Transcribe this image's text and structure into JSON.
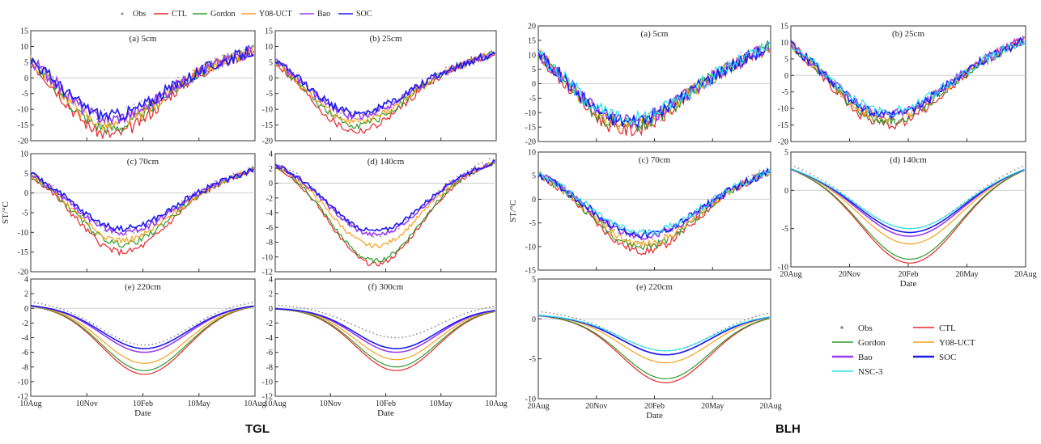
{
  "site_labels": {
    "left": "TGL",
    "right": "BLH"
  },
  "colors": {
    "Obs": "#888888",
    "CTL": "#e8262b",
    "Gordon": "#2e9a2e",
    "Y08-UCT": "#f7a11c",
    "Bao": "#9b3df0",
    "SOC": "#1c1cf0",
    "NSC-3": "#27e0e8"
  },
  "tgl_legend": [
    "Obs",
    "CTL",
    "Gordon",
    "Y08-UCT",
    "Bao",
    "SOC"
  ],
  "blh_legend": [
    "Obs",
    "CTL",
    "Gordon",
    "Y08-UCT",
    "Bao",
    "SOC",
    "NSC-3"
  ],
  "xtick_labels": {
    "TGL": [
      "10Aug",
      "10Nov",
      "10Feb",
      "10May",
      "10Aug"
    ],
    "BLH": [
      "20Aug",
      "20Nov",
      "20Feb",
      "20May",
      "20Aug"
    ]
  },
  "xlabel": "Date",
  "ylabel": "ST/°C",
  "chart_data": [
    {
      "id": "tgl-a",
      "type": "line",
      "title": "(a) 5cm",
      "ylim": [
        -20,
        15
      ],
      "yticks": [
        -20,
        -15,
        -10,
        -5,
        0,
        5,
        10,
        15
      ],
      "min_day": 130,
      "winter": {
        "Obs": -12,
        "CTL": -18,
        "Gordon": -16,
        "Y08-UCT": -15,
        "Bao": -13,
        "SOC": -12
      },
      "summer": 9,
      "noise": 2
    },
    {
      "id": "tgl-b",
      "type": "line",
      "title": "(b) 25cm",
      "ylim": [
        -20,
        15
      ],
      "yticks": [
        -20,
        -15,
        -10,
        -5,
        0,
        5,
        10,
        15
      ],
      "min_day": 135,
      "winter": {
        "Obs": -12,
        "CTL": -17,
        "Gordon": -15,
        "Y08-UCT": -14,
        "Bao": -12,
        "SOC": -11
      },
      "summer": 8,
      "noise": 1.2
    },
    {
      "id": "tgl-c",
      "type": "line",
      "title": "(c) 70cm",
      "ylim": [
        -20,
        10
      ],
      "yticks": [
        -20,
        -15,
        -10,
        -5,
        0,
        5,
        10
      ],
      "min_day": 150,
      "winter": {
        "Obs": -10,
        "CTL": -15,
        "Gordon": -13,
        "Y08-UCT": -12,
        "Bao": -10,
        "SOC": -9
      },
      "summer": 6,
      "noise": 0.8
    },
    {
      "id": "tgl-d",
      "type": "line",
      "title": "(d) 140cm",
      "ylim": [
        -12,
        4
      ],
      "yticks": [
        -12,
        -10,
        -8,
        -6,
        -4,
        -2,
        0,
        2,
        4
      ],
      "min_day": 165,
      "winter": {
        "Obs": -7,
        "CTL": -11,
        "Gordon": -10.5,
        "Y08-UCT": -8.5,
        "Bao": -7,
        "SOC": -6.5
      },
      "summer": 3,
      "noise": 0.3
    },
    {
      "id": "tgl-e",
      "type": "line",
      "title": "(e) 220cm",
      "ylim": [
        -12,
        4
      ],
      "yticks": [
        -12,
        -10,
        -8,
        -6,
        -4,
        -2,
        0,
        2,
        4
      ],
      "min_day": 185,
      "winter": {
        "Obs": -5,
        "CTL": -9,
        "Gordon": -8.5,
        "Y08-UCT": -7.5,
        "Bao": -6,
        "SOC": -5.5
      },
      "summer": 0.5,
      "noise": 0
    },
    {
      "id": "tgl-f",
      "type": "line",
      "title": "(f) 300cm",
      "ylim": [
        -12,
        4
      ],
      "yticks": [
        -12,
        -10,
        -8,
        -6,
        -4,
        -2,
        0,
        2,
        4
      ],
      "min_day": 200,
      "winter": {
        "Obs": -4,
        "CTL": -8.5,
        "Gordon": -8,
        "Y08-UCT": -7,
        "Bao": -6,
        "SOC": -5.5
      },
      "summer": 0,
      "noise": 0
    },
    {
      "id": "blh-a",
      "type": "line",
      "title": "(a) 5cm",
      "ylim": [
        -20,
        20
      ],
      "yticks": [
        -20,
        -15,
        -10,
        -5,
        0,
        5,
        10,
        15,
        20
      ],
      "min_day": 140,
      "winter": {
        "Obs": -14,
        "CTL": -16,
        "Gordon": -15,
        "Y08-UCT": -14,
        "Bao": -13,
        "SOC": -13,
        "NSC-3": -12
      },
      "summer": 13,
      "noise": 2.5
    },
    {
      "id": "blh-b",
      "type": "line",
      "title": "(b) 25cm",
      "ylim": [
        -20,
        15
      ],
      "yticks": [
        -20,
        -15,
        -10,
        -5,
        0,
        5,
        10,
        15
      ],
      "min_day": 150,
      "winter": {
        "Obs": -13,
        "CTL": -15,
        "Gordon": -14,
        "Y08-UCT": -13,
        "Bao": -12,
        "SOC": -12,
        "NSC-3": -11
      },
      "summer": 11,
      "noise": 1.5
    },
    {
      "id": "blh-c",
      "type": "line",
      "title": "(c) 70cm",
      "ylim": [
        -15,
        10
      ],
      "yticks": [
        -15,
        -10,
        -5,
        0,
        5,
        10
      ],
      "min_day": 165,
      "winter": {
        "Obs": -9,
        "CTL": -11,
        "Gordon": -10,
        "Y08-UCT": -9.5,
        "Bao": -8,
        "SOC": -7.5,
        "NSC-3": -7
      },
      "summer": 6,
      "noise": 0.8
    },
    {
      "id": "blh-d",
      "type": "line",
      "title": "(d) 140cm",
      "ylim": [
        -10,
        5
      ],
      "yticks": [
        -10,
        -5,
        0,
        5
      ],
      "min_day": 185,
      "winter": {
        "Obs": -5,
        "CTL": -9.5,
        "Gordon": -9,
        "Y08-UCT": -7,
        "Bao": -6,
        "SOC": -5.5,
        "NSC-3": -5
      },
      "summer": 3,
      "noise": 0
    },
    {
      "id": "blh-e",
      "type": "line",
      "title": "(e) 220cm",
      "ylim": [
        -10,
        5
      ],
      "yticks": [
        -10,
        -5,
        0,
        5
      ],
      "min_day": 200,
      "winter": {
        "Obs": -4,
        "CTL": -8,
        "Gordon": -7.5,
        "Y08-UCT": -5.5,
        "Bao": -4.5,
        "SOC": -4.5,
        "NSC-3": -4
      },
      "summer": 0.5,
      "noise": 0
    }
  ]
}
